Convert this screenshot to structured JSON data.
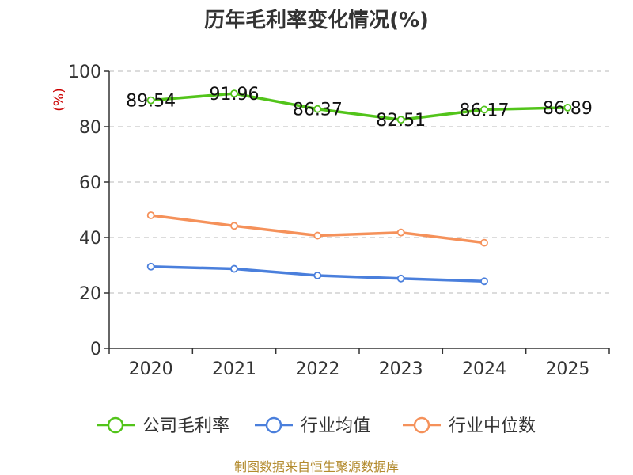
{
  "chart_data": {
    "type": "line",
    "title": "历年毛利率变化情况(%)",
    "ylabel": "(%)",
    "xlabel": "",
    "categories": [
      "2020",
      "2021",
      "2022",
      "2023",
      "2024",
      "2025"
    ],
    "ylim": [
      0,
      100
    ],
    "yticks": [
      0,
      20,
      40,
      60,
      80,
      100
    ],
    "grid": true,
    "legend_position": "bottom",
    "series": [
      {
        "name": "公司毛利率",
        "color": "#52c41a",
        "values": [
          89.54,
          91.96,
          86.37,
          82.51,
          86.17,
          86.89
        ],
        "labels": [
          "89.54",
          "91.96",
          "86.37",
          "82.51",
          "86.17",
          "86.89"
        ]
      },
      {
        "name": "行业均值",
        "color": "#4a7fdc",
        "values": [
          29.5,
          28.7,
          26.3,
          25.2,
          24.2,
          null
        ]
      },
      {
        "name": "行业中位数",
        "color": "#f5915a",
        "values": [
          48.0,
          44.2,
          40.7,
          41.8,
          38.1,
          null
        ]
      }
    ]
  },
  "source": "制图数据来自恒生聚源数据库"
}
